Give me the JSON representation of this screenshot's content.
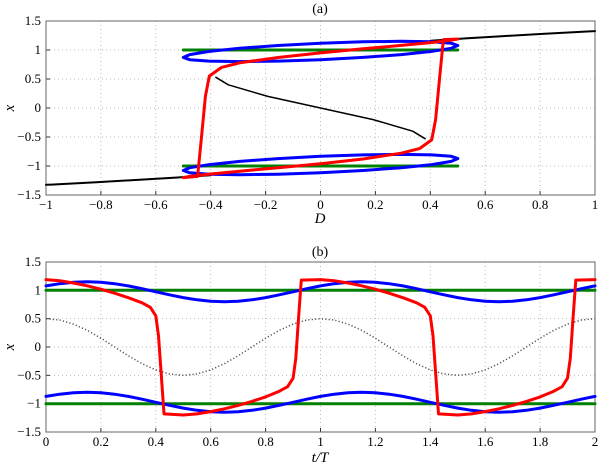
{
  "chart_data": [
    {
      "type": "line",
      "title": "(a)",
      "xlabel": "D",
      "ylabel": "x",
      "xlim": [
        -1,
        1
      ],
      "ylim": [
        -1.5,
        1.5
      ],
      "xticks": [
        "−1",
        "−0.8",
        "−0.6",
        "−0.4",
        "−0.2",
        "0",
        "0.2",
        "0.4",
        "0.6",
        "0.8",
        "1"
      ],
      "xtick_values": [
        -1,
        -0.8,
        -0.6,
        -0.4,
        -0.2,
        0,
        0.2,
        0.4,
        0.6,
        0.8,
        1
      ],
      "yticks": [
        "1.5",
        "1",
        "0.5",
        "0",
        "−0.5",
        "−1",
        "−1.5"
      ],
      "ytick_values": [
        1.5,
        1,
        0.5,
        0,
        -0.5,
        -1,
        -1.5
      ],
      "grid": true,
      "parametric_note_of_axes": "curves from panel (b) plotted against D",
      "static_curve_color": "#000000",
      "static_curve": {
        "lower": [
          [
            -1,
            -1.325
          ],
          [
            -0.98,
            -1.32
          ],
          [
            -0.817,
            -1.28
          ],
          [
            -0.667,
            -1.24
          ],
          [
            -0.528,
            -1.2
          ],
          [
            -0.401,
            -1.16
          ]
        ],
        "middle": [
          [
            -0.381,
            0.53
          ],
          [
            -0.336,
            0.4
          ],
          [
            -0.192,
            0.2
          ],
          [
            0,
            0
          ],
          [
            0.192,
            -0.2
          ],
          [
            0.336,
            -0.4
          ],
          [
            0.381,
            -0.53
          ]
        ],
        "upper": [
          [
            0.401,
            1.16
          ],
          [
            0.528,
            1.2
          ],
          [
            0.667,
            1.24
          ],
          [
            0.817,
            1.28
          ],
          [
            0.98,
            1.32
          ],
          [
            1,
            1.325
          ]
        ]
      }
    },
    {
      "type": "line",
      "title": "(b)",
      "xlabel": "t/T",
      "ylabel": "x",
      "xlim": [
        0,
        2
      ],
      "ylim": [
        -1.5,
        1.5
      ],
      "xticks": [
        "0",
        "0.2",
        "0.4",
        "0.6",
        "0.8",
        "1",
        "1.2",
        "1.4",
        "1.6",
        "1.8",
        "2"
      ],
      "xtick_values": [
        0,
        0.2,
        0.4,
        0.6,
        0.8,
        1,
        1.2,
        1.4,
        1.6,
        1.8,
        2
      ],
      "yticks": [
        "1.5",
        "1",
        "0.5",
        "0",
        "−0.5",
        "−1",
        "−1.5"
      ],
      "ytick_values": [
        1.5,
        1,
        0.5,
        0,
        -0.5,
        -1,
        -1.5
      ],
      "grid": true,
      "t_grid": [
        0,
        0.05,
        0.1,
        0.15,
        0.2,
        0.25,
        0.3,
        0.35,
        0.4,
        0.45,
        0.5,
        0.55,
        0.6,
        0.65,
        0.7,
        0.75,
        0.8,
        0.85,
        0.9,
        0.95,
        1
      ],
      "series": [
        {
          "color": "#555555",
          "style": "dotted",
          "role": "D",
          "values": [
            0.5,
            0.476,
            0.405,
            0.294,
            0.155,
            0,
            -0.155,
            -0.294,
            -0.405,
            -0.476,
            -0.5,
            -0.476,
            -0.405,
            -0.294,
            -0.155,
            0,
            0.155,
            0.294,
            0.405,
            0.476,
            0.5
          ]
        },
        {
          "color": "#008000",
          "style": "solid",
          "values_const": 1
        },
        {
          "color": "#008000",
          "style": "solid",
          "values_const": -1
        },
        {
          "color": "#0000ff",
          "style": "solid",
          "values": [
            1.078,
            1.117,
            1.142,
            1.15,
            1.142,
            1.117,
            1.078,
            1.029,
            0.975,
            0.921,
            0.872,
            0.833,
            0.809,
            0.8,
            0.809,
            0.833,
            0.872,
            0.921,
            0.975,
            1.029,
            1.078
          ]
        },
        {
          "color": "#0000ff",
          "style": "solid",
          "values": [
            -0.872,
            -0.833,
            -0.808,
            -0.8,
            -0.808,
            -0.833,
            -0.872,
            -0.921,
            -0.975,
            -1.029,
            -1.078,
            -1.117,
            -1.141,
            -1.15,
            -1.141,
            -1.117,
            -1.078,
            -1.029,
            -0.975,
            -0.921,
            -0.872
          ]
        },
        {
          "color": "#ff0000",
          "style": "solid",
          "points": [
            [
              0,
              1.19
            ],
            [
              0.05,
              1.17
            ],
            [
              0.1,
              1.13
            ],
            [
              0.15,
              1.08
            ],
            [
              0.2,
              1.02
            ],
            [
              0.25,
              0.95
            ],
            [
              0.3,
              0.87
            ],
            [
              0.35,
              0.78
            ],
            [
              0.38,
              0.7
            ],
            [
              0.4,
              0.55
            ],
            [
              0.41,
              0.2
            ],
            [
              0.42,
              -0.5
            ],
            [
              0.43,
              -1.18
            ],
            [
              0.5,
              -1.2
            ],
            [
              0.55,
              -1.18
            ],
            [
              0.6,
              -1.14
            ],
            [
              0.65,
              -1.09
            ],
            [
              0.7,
              -1.03
            ],
            [
              0.75,
              -0.96
            ],
            [
              0.8,
              -0.88
            ],
            [
              0.85,
              -0.78
            ],
            [
              0.88,
              -0.7
            ],
            [
              0.9,
              -0.55
            ],
            [
              0.91,
              -0.2
            ],
            [
              0.92,
              0.5
            ],
            [
              0.93,
              1.18
            ],
            [
              1.0,
              1.19
            ],
            [
              1.05,
              1.17
            ],
            [
              1.1,
              1.13
            ],
            [
              1.15,
              1.08
            ],
            [
              1.2,
              1.02
            ],
            [
              1.25,
              0.95
            ],
            [
              1.3,
              0.87
            ],
            [
              1.35,
              0.78
            ],
            [
              1.38,
              0.7
            ],
            [
              1.4,
              0.55
            ],
            [
              1.41,
              0.2
            ],
            [
              1.42,
              -0.5
            ],
            [
              1.43,
              -1.18
            ],
            [
              1.5,
              -1.2
            ],
            [
              1.55,
              -1.18
            ],
            [
              1.6,
              -1.14
            ],
            [
              1.65,
              -1.09
            ],
            [
              1.7,
              -1.03
            ],
            [
              1.75,
              -0.96
            ],
            [
              1.8,
              -0.88
            ],
            [
              1.85,
              -0.78
            ],
            [
              1.88,
              -0.7
            ],
            [
              1.9,
              -0.55
            ],
            [
              1.91,
              -0.2
            ],
            [
              1.92,
              0.5
            ],
            [
              1.93,
              1.18
            ],
            [
              2.0,
              1.19
            ]
          ]
        }
      ]
    }
  ]
}
